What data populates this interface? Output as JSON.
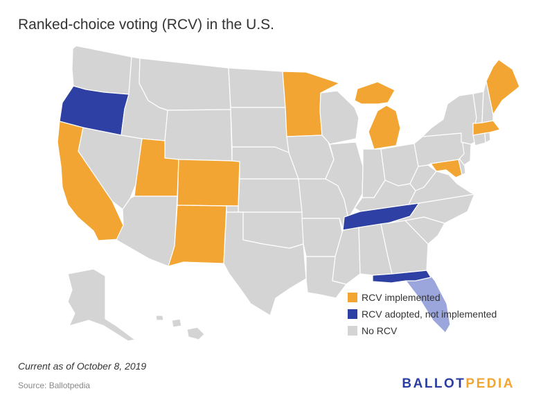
{
  "title": "Ranked-choice voting (RCV) in the U.S.",
  "colors": {
    "implemented": "#f2a532",
    "adopted": "#2e40a3",
    "none": "#d4d4d4",
    "adopted_light": "#9aa6dc",
    "border": "#ffffff"
  },
  "legend": [
    {
      "label": "RCV implemented",
      "color": "#f2a532"
    },
    {
      "label": "RCV adopted, not implemented",
      "color": "#2e40a3"
    },
    {
      "label": "No RCV",
      "color": "#d4d4d4"
    }
  ],
  "map_data": {
    "states": [
      {
        "state": "Washington",
        "status": "none"
      },
      {
        "state": "Oregon",
        "status": "adopted"
      },
      {
        "state": "California",
        "status": "implemented"
      },
      {
        "state": "Nevada",
        "status": "none"
      },
      {
        "state": "Idaho",
        "status": "none"
      },
      {
        "state": "Montana",
        "status": "none"
      },
      {
        "state": "Wyoming",
        "status": "none"
      },
      {
        "state": "Utah",
        "status": "implemented"
      },
      {
        "state": "Arizona",
        "status": "none"
      },
      {
        "state": "Colorado",
        "status": "implemented"
      },
      {
        "state": "New Mexico",
        "status": "implemented"
      },
      {
        "state": "North Dakota",
        "status": "none"
      },
      {
        "state": "South Dakota",
        "status": "none"
      },
      {
        "state": "Nebraska",
        "status": "none"
      },
      {
        "state": "Kansas",
        "status": "none"
      },
      {
        "state": "Oklahoma",
        "status": "none"
      },
      {
        "state": "Texas",
        "status": "none"
      },
      {
        "state": "Minnesota",
        "status": "implemented"
      },
      {
        "state": "Iowa",
        "status": "none"
      },
      {
        "state": "Missouri",
        "status": "none"
      },
      {
        "state": "Arkansas",
        "status": "none"
      },
      {
        "state": "Louisiana",
        "status": "none"
      },
      {
        "state": "Wisconsin",
        "status": "none"
      },
      {
        "state": "Illinois",
        "status": "none"
      },
      {
        "state": "Michigan",
        "status": "implemented"
      },
      {
        "state": "Indiana",
        "status": "none"
      },
      {
        "state": "Ohio",
        "status": "none"
      },
      {
        "state": "Kentucky",
        "status": "none"
      },
      {
        "state": "Tennessee",
        "status": "adopted"
      },
      {
        "state": "Mississippi",
        "status": "none"
      },
      {
        "state": "Alabama",
        "status": "none"
      },
      {
        "state": "Georgia",
        "status": "none"
      },
      {
        "state": "Florida",
        "status": "adopted"
      },
      {
        "state": "South Carolina",
        "status": "none"
      },
      {
        "state": "North Carolina",
        "status": "none"
      },
      {
        "state": "Virginia",
        "status": "none"
      },
      {
        "state": "West Virginia",
        "status": "none"
      },
      {
        "state": "Maryland",
        "status": "implemented"
      },
      {
        "state": "Delaware",
        "status": "none"
      },
      {
        "state": "New Jersey",
        "status": "none"
      },
      {
        "state": "Pennsylvania",
        "status": "none"
      },
      {
        "state": "New York",
        "status": "none"
      },
      {
        "state": "Connecticut",
        "status": "none"
      },
      {
        "state": "Rhode Island",
        "status": "none"
      },
      {
        "state": "Massachusetts",
        "status": "implemented"
      },
      {
        "state": "Vermont",
        "status": "none"
      },
      {
        "state": "New Hampshire",
        "status": "none"
      },
      {
        "state": "Maine",
        "status": "implemented"
      },
      {
        "state": "Alaska",
        "status": "none"
      },
      {
        "state": "Hawaii",
        "status": "none"
      }
    ]
  },
  "note": "Current as of October 8, 2019",
  "source": "Source: Ballotpedia",
  "brand": {
    "part1": "BALLOT",
    "part2": "PEDIA"
  }
}
